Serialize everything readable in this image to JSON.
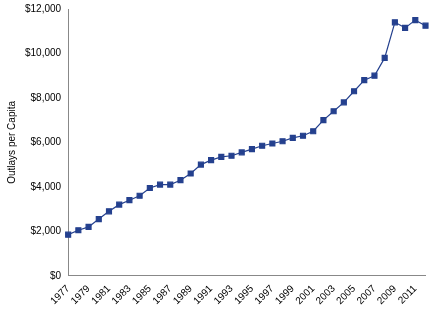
{
  "chart_data": {
    "type": "line",
    "y_label": "Outlays per Capita",
    "categories": [
      "1977",
      null,
      "1979",
      null,
      "1981",
      null,
      "1983",
      null,
      "1985",
      null,
      "1987",
      null,
      "1989",
      null,
      "1991",
      null,
      "1993",
      null,
      "1995",
      null,
      "1997",
      null,
      "1999",
      null,
      "2001",
      null,
      "2003",
      null,
      "2005",
      null,
      "2007",
      null,
      "2009",
      null,
      "2011",
      null
    ],
    "values": [
      1850,
      2050,
      2200,
      2550,
      2900,
      3200,
      3400,
      3600,
      3950,
      4100,
      4100,
      4300,
      4600,
      5000,
      5200,
      5350,
      5400,
      5550,
      5700,
      5850,
      5950,
      6050,
      6200,
      6300,
      6500,
      7000,
      7400,
      7800,
      8300,
      8800,
      9000,
      9800,
      11400,
      11150,
      11500,
      11250
    ],
    "color": "#24408e",
    "marker": "square",
    "ylim": [
      0,
      12000
    ],
    "yticks": [
      {
        "value": 0,
        "label": "$0"
      },
      {
        "value": 2000,
        "label": "$2,000"
      },
      {
        "value": 4000,
        "label": "$4,000"
      },
      {
        "value": 6000,
        "label": "$6,000"
      },
      {
        "value": 8000,
        "label": "$8,000"
      },
      {
        "value": 10000,
        "label": "$10,000"
      },
      {
        "value": 12000,
        "label": "$12,000"
      }
    ],
    "grid": false
  }
}
